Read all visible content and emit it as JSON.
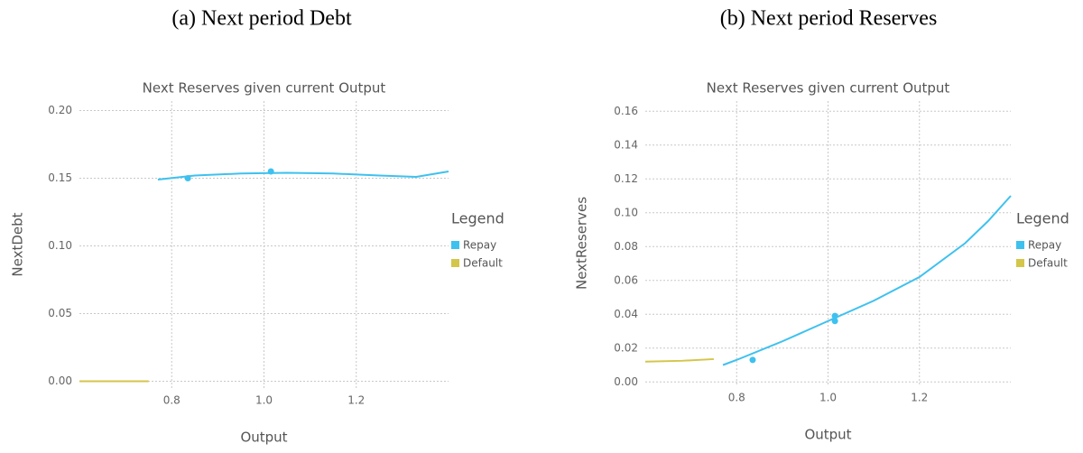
{
  "chart_data": [
    {
      "type": "line",
      "caption": "(a) Next period Debt",
      "title": "Next Reserves given current Output",
      "x_label": "Output",
      "y_label": "NextDebt",
      "legend_title": "Legend",
      "legend": "right",
      "grid": true,
      "xlim": [
        0.6,
        1.4
      ],
      "ylim": [
        -0.005,
        0.207
      ],
      "xticks": [
        0.8,
        {
          "value": 1.0,
          "label": "1.0"
        },
        1.2
      ],
      "yticks": [
        {
          "value": 0,
          "label": "0.00"
        },
        {
          "value": 0.05,
          "label": "0.05"
        },
        {
          "value": 0.1,
          "label": "0.10"
        },
        {
          "value": 0.15,
          "label": "0.15"
        },
        {
          "value": 0.2,
          "label": "0.20"
        }
      ],
      "series": [
        {
          "name": "Repay",
          "color": "#3ec1ef",
          "x": [
            0.77,
            0.85,
            0.95,
            1.05,
            1.15,
            1.25,
            1.33,
            1.4
          ],
          "values": [
            0.149,
            0.152,
            0.1535,
            0.154,
            0.1535,
            0.152,
            0.151,
            0.155
          ],
          "marker_x": [
            0.835,
            1.015
          ],
          "marker_values": [
            0.15,
            0.155
          ]
        },
        {
          "name": "Default",
          "color": "#d4c64a",
          "x": [
            0.6,
            0.75
          ],
          "values": [
            0,
            0
          ]
        }
      ]
    },
    {
      "type": "line",
      "caption": "(b) Next period Reserves",
      "title": "Next Reserves given current Output",
      "x_label": "Output",
      "y_label": "NextReserves",
      "legend_title": "Legend",
      "legend": "right",
      "grid": true,
      "xlim": [
        0.6,
        1.4
      ],
      "ylim": [
        -0.002,
        0.166
      ],
      "xticks": [
        0.8,
        {
          "value": 1.0,
          "label": "1.0"
        },
        1.2
      ],
      "yticks": [
        {
          "value": 0,
          "label": "0.00"
        },
        {
          "value": 0.02,
          "label": "0.02"
        },
        {
          "value": 0.04,
          "label": "0.04"
        },
        {
          "value": 0.06,
          "label": "0.06"
        },
        {
          "value": 0.08,
          "label": "0.08"
        },
        {
          "value": 0.1,
          "label": "0.10"
        },
        {
          "value": 0.12,
          "label": "0.12"
        },
        {
          "value": 0.14,
          "label": "0.14"
        },
        {
          "value": 0.16,
          "label": "0.16"
        }
      ],
      "series": [
        {
          "name": "Repay",
          "color": "#3ec1ef",
          "x": [
            0.77,
            0.8,
            0.9,
            1.0,
            1.1,
            1.2,
            1.3,
            1.35,
            1.4
          ],
          "values": [
            0.01,
            0.013,
            0.024,
            0.036,
            0.048,
            0.062,
            0.082,
            0.095,
            0.11
          ],
          "marker_x": [
            0.835,
            1.015,
            1.015
          ],
          "marker_values": [
            0.013,
            0.039,
            0.036
          ]
        },
        {
          "name": "Default",
          "color": "#d4c64a",
          "x": [
            0.6,
            0.68,
            0.75
          ],
          "values": [
            0.012,
            0.0125,
            0.0135
          ]
        }
      ]
    }
  ]
}
